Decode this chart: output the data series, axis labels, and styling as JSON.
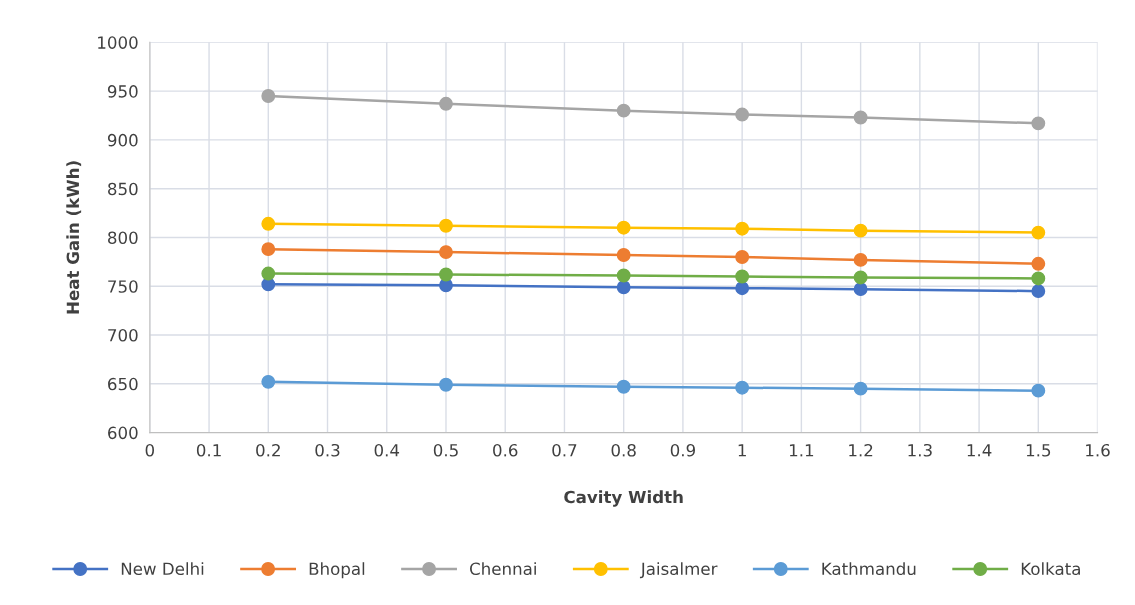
{
  "chart_data": {
    "type": "line",
    "xlabel": "Cavity Width",
    "ylabel": "Heat Gain (kWh)",
    "x": [
      0.2,
      0.5,
      0.8,
      1,
      1.2,
      1.5
    ],
    "series": [
      {
        "name": "New Delhi",
        "color": "#4472c4",
        "values": [
          752,
          751,
          749,
          748,
          747,
          745
        ]
      },
      {
        "name": "Bhopal",
        "color": "#ed7d31",
        "values": [
          788,
          785,
          782,
          780,
          777,
          773
        ]
      },
      {
        "name": "Chennai",
        "color": "#a5a5a5",
        "values": [
          945,
          937,
          930,
          926,
          923,
          917
        ]
      },
      {
        "name": "Jaisalmer",
        "color": "#ffc000",
        "values": [
          814,
          812,
          810,
          809,
          807,
          805
        ]
      },
      {
        "name": "Kathmandu",
        "color": "#5b9bd5",
        "values": [
          652,
          649,
          647,
          646,
          645,
          643
        ]
      },
      {
        "name": "Kolkata",
        "color": "#70ad47",
        "values": [
          763,
          762,
          761,
          760,
          759,
          758
        ]
      }
    ],
    "xlim": [
      0,
      1.6
    ],
    "xticks": [
      0,
      0.1,
      0.2,
      0.3,
      0.4,
      0.5,
      0.6,
      0.7,
      0.8,
      0.9,
      1,
      1.1,
      1.2,
      1.3,
      1.4,
      1.5,
      1.6
    ],
    "ylim": [
      600,
      1000
    ],
    "yticks": [
      600,
      650,
      700,
      750,
      800,
      850,
      900,
      950,
      1000
    ],
    "grid": true,
    "legend": "bottom",
    "marker": "circle",
    "line_style": "solid"
  }
}
